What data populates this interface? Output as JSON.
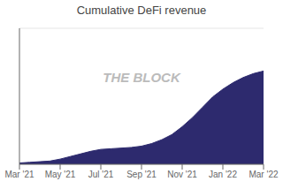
{
  "chart_data": {
    "type": "area",
    "title": "Cumulative DeFi revenue",
    "annotation": "THE BLOCK",
    "x": [
      0,
      1,
      2,
      3,
      4,
      5,
      6,
      7,
      8,
      9,
      10,
      11,
      12,
      13,
      14,
      15,
      16,
      17,
      18,
      19,
      20,
      21,
      22,
      23,
      24
    ],
    "values": [
      0.01,
      0.015,
      0.02,
      0.025,
      0.04,
      0.06,
      0.08,
      0.1,
      0.115,
      0.12,
      0.125,
      0.13,
      0.14,
      0.16,
      0.19,
      0.23,
      0.29,
      0.36,
      0.44,
      0.52,
      0.58,
      0.63,
      0.67,
      0.7,
      0.72
    ],
    "color": "#2d2a6e",
    "xlim": [
      0,
      24
    ],
    "xticks": [
      {
        "value": 0,
        "label": "Mar '21"
      },
      {
        "value": 4,
        "label": "May '21"
      },
      {
        "value": 8,
        "label": "Jul '21"
      },
      {
        "value": 12,
        "label": "Sep '21"
      },
      {
        "value": 16,
        "label": "Nov '21"
      },
      {
        "value": 20,
        "label": "Jan '22"
      },
      {
        "value": 24,
        "label": "Mar '22"
      }
    ],
    "ylim": [
      0,
      1.05
    ],
    "yticks": [
      0.25,
      0.5,
      0.75,
      1.0
    ],
    "grid": true,
    "tick_labels": "x"
  }
}
